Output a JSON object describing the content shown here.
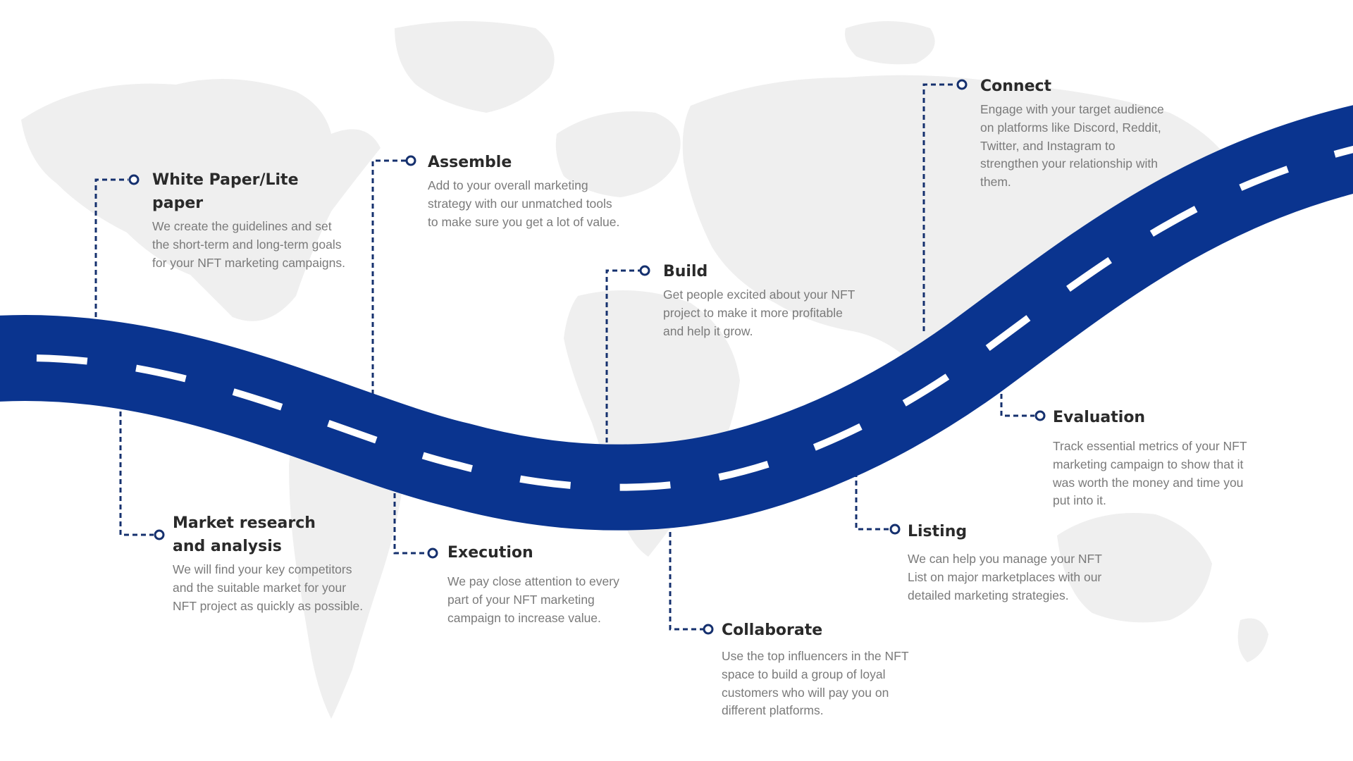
{
  "colors": {
    "road": "#0a348f",
    "connector": "#15306e",
    "map": "#efefef",
    "title": "#2a2a2a",
    "body": "#7a7a7a"
  },
  "steps": [
    {
      "id": "white-paper",
      "title_lines": [
        "White Paper/Lite",
        "paper"
      ],
      "desc_lines": [
        "We create the guidelines and set",
        "the short-term and long-term goals",
        "for your NFT marketing campaigns."
      ]
    },
    {
      "id": "market-research",
      "title_lines": [
        "Market research",
        "and analysis"
      ],
      "desc_lines": [
        "We will find your key competitors",
        "and the suitable market for your",
        "NFT project as quickly as possible."
      ]
    },
    {
      "id": "assemble",
      "title_lines": [
        "Assemble"
      ],
      "desc_lines": [
        "Add to your overall marketing",
        "strategy with our unmatched tools",
        "to make sure you get a lot of value."
      ]
    },
    {
      "id": "execution",
      "title_lines": [
        "Execution"
      ],
      "desc_lines": [
        "We pay close attention to every",
        "part of your NFT marketing",
        "campaign to increase value."
      ]
    },
    {
      "id": "build",
      "title_lines": [
        "Build"
      ],
      "desc_lines": [
        "Get people excited about your NFT",
        "project to make it more profitable",
        "and help it grow."
      ]
    },
    {
      "id": "collaborate",
      "title_lines": [
        "Collaborate"
      ],
      "desc_lines": [
        "Use the top influencers in the NFT",
        "space to build a group of loyal",
        "customers who will pay you on",
        "different platforms."
      ]
    },
    {
      "id": "connect",
      "title_lines": [
        "Connect"
      ],
      "desc_lines": [
        "Engage with your target audience",
        "on platforms like Discord, Reddit,",
        "Twitter, and Instagram to",
        "strengthen your relationship with",
        "them."
      ]
    },
    {
      "id": "listing",
      "title_lines": [
        "Listing"
      ],
      "desc_lines": [
        "We can help you manage your NFT",
        "List on major marketplaces with our",
        "detailed marketing strategies."
      ]
    },
    {
      "id": "evaluation",
      "title_lines": [
        "Evaluation"
      ],
      "desc_lines": [
        "Track essential metrics of your NFT",
        "marketing campaign to show that it",
        "was worth the money and time you",
        "put into it."
      ]
    }
  ]
}
